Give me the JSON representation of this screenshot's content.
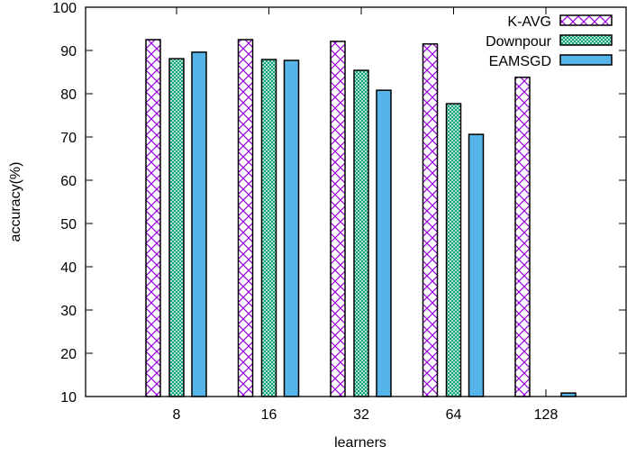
{
  "chart_data": {
    "type": "bar",
    "title": "",
    "xlabel": "learners",
    "ylabel": "accuracy(%)",
    "categories": [
      "8",
      "16",
      "32",
      "64",
      "128"
    ],
    "ylim": [
      10,
      100
    ],
    "yticks": [
      "10",
      "20",
      "30",
      "40",
      "50",
      "60",
      "70",
      "80",
      "90",
      "100"
    ],
    "legend_position": "top-right",
    "grid": false,
    "series": [
      {
        "name": "K-AVG",
        "values": [
          92.5,
          92.5,
          92.1,
          91.5,
          83.8
        ],
        "color": "#9400d3",
        "pattern": "crosshatch"
      },
      {
        "name": "Downpour",
        "values": [
          88.1,
          87.9,
          85.4,
          77.7,
          null
        ],
        "color": "#009e73",
        "pattern": "fine-checker"
      },
      {
        "name": "EAMSGD",
        "values": [
          89.6,
          87.7,
          80.8,
          70.6,
          10.8
        ],
        "color": "#56b4e9",
        "pattern": "solid"
      }
    ]
  }
}
